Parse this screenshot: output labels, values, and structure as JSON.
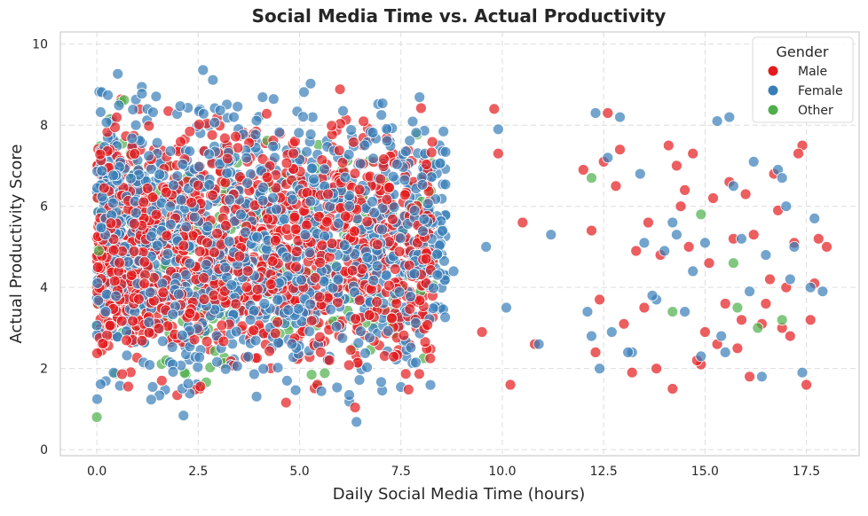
{
  "chart_data": {
    "type": "scatter",
    "title": "Social Media Time vs. Actual Productivity",
    "xlabel": "Daily Social Media Time (hours)",
    "ylabel": "Actual Productivity Score",
    "xlim": [
      -0.9,
      18.8
    ],
    "ylim": [
      -0.15,
      10.3
    ],
    "xticks": [
      0.0,
      2.5,
      5.0,
      7.5,
      10.0,
      12.5,
      15.0,
      17.5
    ],
    "xtick_labels": [
      "0.0",
      "2.5",
      "5.0",
      "7.5",
      "10.0",
      "12.5",
      "15.0",
      "17.5"
    ],
    "yticks": [
      0,
      2,
      4,
      6,
      8,
      10
    ],
    "ytick_labels": [
      "0",
      "2",
      "4",
      "6",
      "8",
      "10"
    ],
    "grid": true,
    "legend": {
      "title": "Gender",
      "placement": "top-right"
    },
    "series": [
      {
        "name": "Male",
        "color": "#e41a1c",
        "dense_cloud": {
          "x_range": [
            0,
            8.3
          ],
          "y_range": [
            0.6,
            9.3
          ],
          "approx_count": 1800
        },
        "x": [
          12.0,
          12.4,
          12.6,
          12.8,
          13.3,
          13.6,
          14.1,
          14.3,
          14.5,
          14.6,
          14.9,
          15.1,
          15.5,
          15.7,
          15.9,
          16.2,
          16.4,
          16.6,
          16.8,
          17.0,
          17.2,
          17.4,
          17.6,
          17.8,
          18.0,
          12.3,
          13.0,
          13.8,
          14.8,
          15.3,
          16.0,
          16.9,
          17.5,
          12.5,
          13.5,
          14.2,
          15.0,
          15.6,
          16.5,
          17.1,
          12.9,
          13.9,
          14.7,
          15.8,
          16.7,
          17.3,
          12.2,
          13.2,
          14.4,
          15.2,
          16.1,
          17.7,
          10.5,
          10.8,
          10.2,
          9.8,
          9.5,
          9.9
        ],
        "y": [
          6.9,
          3.7,
          8.3,
          6.5,
          4.9,
          5.6,
          7.5,
          7.0,
          6.4,
          5.0,
          2.1,
          4.6,
          3.6,
          5.2,
          3.2,
          5.3,
          3.1,
          4.2,
          5.9,
          4.0,
          5.1,
          7.5,
          3.2,
          5.2,
          5.0,
          2.4,
          3.1,
          2.0,
          2.2,
          2.6,
          6.3,
          3.0,
          1.6,
          7.1,
          3.5,
          1.5,
          2.9,
          6.6,
          3.6,
          2.8,
          7.4,
          4.8,
          7.3,
          2.5,
          6.8,
          7.3,
          5.4,
          1.9,
          6.0,
          6.2,
          1.8,
          4.1,
          5.6,
          2.6,
          1.6,
          8.4,
          2.9,
          7.3
        ]
      },
      {
        "name": "Female",
        "color": "#377eb8",
        "dense_cloud": {
          "x_range": [
            0,
            8.6
          ],
          "y_range": [
            0.3,
            9.8
          ],
          "approx_count": 1800
        },
        "x": [
          11.2,
          12.1,
          12.3,
          12.6,
          12.9,
          13.2,
          13.5,
          13.8,
          14.0,
          14.3,
          14.7,
          15.0,
          15.3,
          15.6,
          15.9,
          16.2,
          16.5,
          16.8,
          17.1,
          17.4,
          17.7,
          17.9,
          12.2,
          13.4,
          14.5,
          15.5,
          16.4,
          17.2,
          12.7,
          13.7,
          14.9,
          15.7,
          16.9,
          17.6,
          12.4,
          13.1,
          14.2,
          15.4,
          16.1,
          17.0,
          10.1,
          10.9,
          9.9,
          9.6,
          8.8
        ],
        "y": [
          5.3,
          3.4,
          8.3,
          7.2,
          8.2,
          2.4,
          5.1,
          3.7,
          4.9,
          5.3,
          4.4,
          5.1,
          8.1,
          8.2,
          5.2,
          7.1,
          4.8,
          6.9,
          4.2,
          1.9,
          5.7,
          3.9,
          2.8,
          6.8,
          3.4,
          2.4,
          1.8,
          5.0,
          2.9,
          3.8,
          2.3,
          6.5,
          6.7,
          4.0,
          2.0,
          2.4,
          5.6,
          2.8,
          3.9,
          6.0,
          3.5,
          2.6,
          7.9,
          5.0,
          4.4
        ]
      },
      {
        "name": "Other",
        "color": "#4daf4a",
        "dense_cloud": {
          "x_range": [
            0,
            8.4
          ],
          "y_range": [
            0.8,
            9.2
          ],
          "approx_count": 300
        },
        "x": [
          12.2,
          14.2,
          14.9,
          15.7,
          15.8,
          16.3,
          16.9,
          0.0,
          0.05
        ],
        "y": [
          6.7,
          3.4,
          5.8,
          4.6,
          3.5,
          3.0,
          3.2,
          0.8,
          4.9
        ]
      }
    ]
  }
}
